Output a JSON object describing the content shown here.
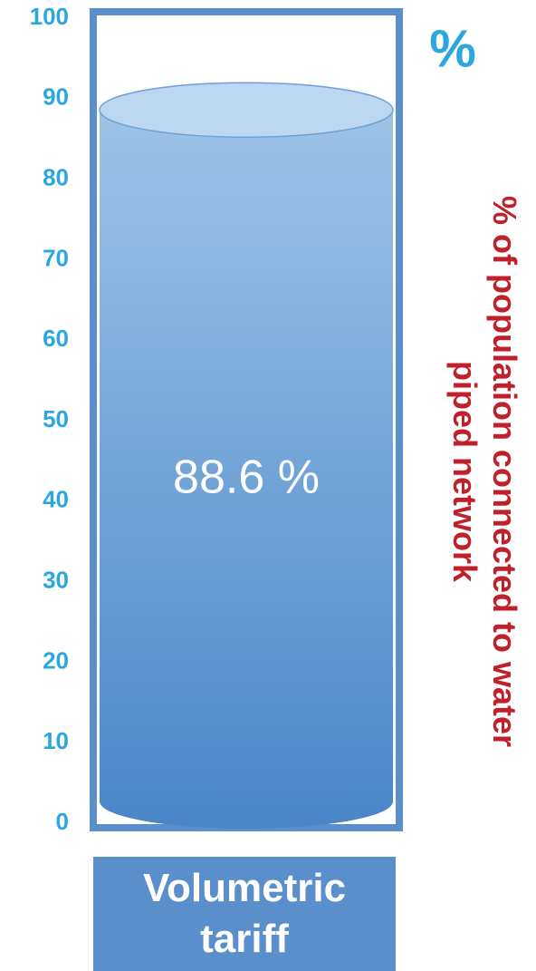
{
  "chart_data": {
    "type": "bar",
    "unit": "%",
    "ylabel": "% of population connected to water piped network",
    "categories": [
      "Volumetric tariff"
    ],
    "values": [
      88.6
    ],
    "value_labels": [
      "88.6 %"
    ],
    "color": "#5b8fcc",
    "ylim": [
      0,
      100
    ],
    "yticks": [
      0,
      10,
      20,
      30,
      40,
      50,
      60,
      70,
      80,
      90,
      100
    ]
  }
}
